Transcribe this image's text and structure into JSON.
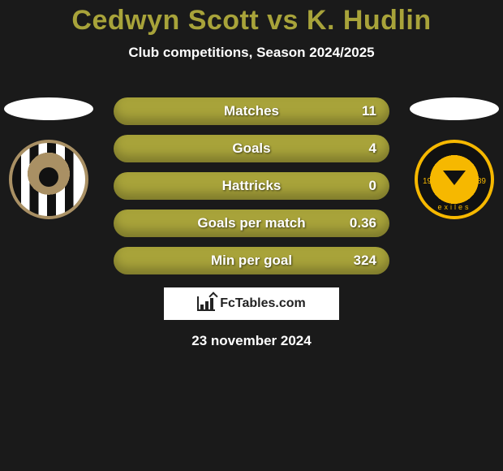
{
  "title": "Cedwyn Scott vs K. Hudlin",
  "subtitle": "Club competitions, Season 2024/2025",
  "colors": {
    "background": "#1a1a1a",
    "accent": "#a8a33a",
    "text": "#ffffff"
  },
  "players": {
    "left": {
      "name": "Cedwyn Scott",
      "club_crest": "notts-county"
    },
    "right": {
      "name": "K. Hudlin",
      "club_crest": "newport-county",
      "crest_year_left": "1912",
      "crest_year_right": "1989",
      "crest_text_bottom": "exiles"
    }
  },
  "stats": [
    {
      "label": "Matches",
      "value": "11"
    },
    {
      "label": "Goals",
      "value": "4"
    },
    {
      "label": "Hattricks",
      "value": "0"
    },
    {
      "label": "Goals per match",
      "value": "0.36"
    },
    {
      "label": "Min per goal",
      "value": "324"
    }
  ],
  "brand": "FcTables.com",
  "date": "23 november 2024"
}
